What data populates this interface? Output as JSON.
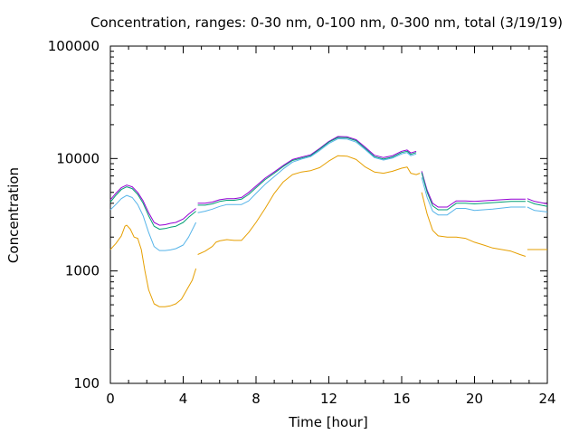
{
  "chart_data": {
    "type": "line",
    "title": "Concentration, ranges: 0-30 nm, 0-100 nm, 0-300 nm, total (3/19/19)",
    "xlabel": "Time [hour]",
    "ylabel": "Concentration",
    "xlim": [
      0,
      24
    ],
    "ylim": [
      100,
      100000
    ],
    "yscale": "log",
    "grid": false,
    "x_ticks": [
      0,
      4,
      8,
      12,
      16,
      20,
      24
    ],
    "x_tick_labels": [
      "0",
      "4",
      "8",
      "12",
      "16",
      "20",
      "24"
    ],
    "y_ticks": [
      100,
      1000,
      10000,
      100000
    ],
    "y_tick_labels": [
      "100",
      "1000",
      "10000",
      "100000"
    ],
    "colors": {
      "range_0_30": "#e69f00",
      "range_0_100": "#56b4e9",
      "range_0_300": "#009e73",
      "total": "#9400d3"
    },
    "series": [
      {
        "key": "total",
        "segments": [
          [
            [
              0,
              4300
            ],
            [
              0.3,
              4900
            ],
            [
              0.6,
              5500
            ],
            [
              0.9,
              5800
            ],
            [
              1.2,
              5600
            ],
            [
              1.5,
              5000
            ],
            [
              1.8,
              4200
            ],
            [
              2.1,
              3300
            ],
            [
              2.4,
              2700
            ],
            [
              2.7,
              2550
            ],
            [
              3.0,
              2580
            ],
            [
              3.3,
              2650
            ],
            [
              3.6,
              2700
            ],
            [
              4.0,
              2900
            ],
            [
              4.3,
              3200
            ],
            [
              4.7,
              3600
            ]
          ],
          [
            [
              4.8,
              4000
            ],
            [
              5.2,
              4000
            ],
            [
              5.6,
              4100
            ],
            [
              6.0,
              4300
            ],
            [
              6.4,
              4400
            ],
            [
              6.8,
              4400
            ],
            [
              7.2,
              4500
            ],
            [
              7.6,
              5000
            ],
            [
              8.0,
              5700
            ],
            [
              8.5,
              6700
            ],
            [
              9.0,
              7600
            ],
            [
              9.5,
              8700
            ],
            [
              10.0,
              9800
            ],
            [
              10.5,
              10300
            ],
            [
              11.0,
              10800
            ],
            [
              11.5,
              12300
            ],
            [
              12.0,
              14200
            ],
            [
              12.5,
              15700
            ],
            [
              13.0,
              15600
            ],
            [
              13.5,
              14700
            ],
            [
              14.0,
              12600
            ],
            [
              14.5,
              10700
            ],
            [
              15.0,
              10200
            ],
            [
              15.5,
              10600
            ],
            [
              16.0,
              11600
            ],
            [
              16.3,
              11900
            ],
            [
              16.5,
              11200
            ],
            [
              16.8,
              11600
            ]
          ],
          [
            [
              17.1,
              7700
            ],
            [
              17.4,
              5200
            ],
            [
              17.7,
              4000
            ],
            [
              18.0,
              3700
            ],
            [
              18.5,
              3700
            ],
            [
              19.0,
              4200
            ],
            [
              19.5,
              4200
            ],
            [
              20.0,
              4150
            ],
            [
              21.0,
              4250
            ],
            [
              22.0,
              4350
            ],
            [
              22.8,
              4350
            ]
          ],
          [
            [
              22.9,
              4400
            ],
            [
              23.3,
              4150
            ],
            [
              24.0,
              3950
            ]
          ]
        ]
      },
      {
        "key": "range_0_300",
        "segments": [
          [
            [
              0,
              4100
            ],
            [
              0.3,
              4700
            ],
            [
              0.6,
              5300
            ],
            [
              0.9,
              5600
            ],
            [
              1.2,
              5400
            ],
            [
              1.5,
              4800
            ],
            [
              1.8,
              4000
            ],
            [
              2.1,
              3100
            ],
            [
              2.4,
              2500
            ],
            [
              2.7,
              2350
            ],
            [
              3.0,
              2380
            ],
            [
              3.3,
              2450
            ],
            [
              3.6,
              2500
            ],
            [
              4.0,
              2700
            ],
            [
              4.3,
              3000
            ],
            [
              4.7,
              3400
            ]
          ],
          [
            [
              4.8,
              3850
            ],
            [
              5.2,
              3850
            ],
            [
              5.6,
              3950
            ],
            [
              6.0,
              4150
            ],
            [
              6.4,
              4250
            ],
            [
              6.8,
              4250
            ],
            [
              7.2,
              4350
            ],
            [
              7.6,
              4800
            ],
            [
              8.0,
              5500
            ],
            [
              8.5,
              6500
            ],
            [
              9.0,
              7400
            ],
            [
              9.5,
              8500
            ],
            [
              10.0,
              9600
            ],
            [
              10.5,
              10100
            ],
            [
              11.0,
              10600
            ],
            [
              11.5,
              12100
            ],
            [
              12.0,
              14000
            ],
            [
              12.5,
              15400
            ],
            [
              13.0,
              15300
            ],
            [
              13.5,
              14400
            ],
            [
              14.0,
              12300
            ],
            [
              14.5,
              10400
            ],
            [
              15.0,
              9900
            ],
            [
              15.5,
              10300
            ],
            [
              16.0,
              11300
            ],
            [
              16.3,
              11600
            ],
            [
              16.5,
              10900
            ],
            [
              16.8,
              11300
            ]
          ],
          [
            [
              17.1,
              7500
            ],
            [
              17.4,
              5000
            ],
            [
              17.7,
              3800
            ],
            [
              18.0,
              3500
            ],
            [
              18.5,
              3500
            ],
            [
              19.0,
              4000
            ],
            [
              19.5,
              4000
            ],
            [
              20.0,
              3950
            ],
            [
              21.0,
              4050
            ],
            [
              22.0,
              4150
            ],
            [
              22.8,
              4150
            ]
          ],
          [
            [
              22.9,
              4200
            ],
            [
              23.3,
              3950
            ],
            [
              24.0,
              3750
            ]
          ]
        ]
      },
      {
        "key": "range_0_100",
        "segments": [
          [
            [
              0,
              3500
            ],
            [
              0.3,
              3900
            ],
            [
              0.6,
              4400
            ],
            [
              0.9,
              4700
            ],
            [
              1.2,
              4500
            ],
            [
              1.5,
              3900
            ],
            [
              1.8,
              3100
            ],
            [
              2.1,
              2200
            ],
            [
              2.4,
              1650
            ],
            [
              2.7,
              1520
            ],
            [
              3.0,
              1520
            ],
            [
              3.3,
              1540
            ],
            [
              3.6,
              1580
            ],
            [
              4.0,
              1700
            ],
            [
              4.3,
              2000
            ],
            [
              4.7,
              2700
            ]
          ],
          [
            [
              4.8,
              3300
            ],
            [
              5.2,
              3400
            ],
            [
              5.6,
              3550
            ],
            [
              6.0,
              3750
            ],
            [
              6.4,
              3900
            ],
            [
              6.8,
              3900
            ],
            [
              7.2,
              3900
            ],
            [
              7.6,
              4200
            ],
            [
              8.0,
              4900
            ],
            [
              8.5,
              5900
            ],
            [
              9.0,
              6900
            ],
            [
              9.5,
              8100
            ],
            [
              10.0,
              9300
            ],
            [
              10.5,
              9900
            ],
            [
              11.0,
              10400
            ],
            [
              11.5,
              11800
            ],
            [
              12.0,
              13600
            ],
            [
              12.5,
              15000
            ],
            [
              13.0,
              14900
            ],
            [
              13.5,
              14000
            ],
            [
              14.0,
              12000
            ],
            [
              14.5,
              10200
            ],
            [
              15.0,
              9700
            ],
            [
              15.5,
              10100
            ],
            [
              16.0,
              11000
            ],
            [
              16.3,
              11300
            ],
            [
              16.5,
              10600
            ],
            [
              16.8,
              11000
            ]
          ],
          [
            [
              17.1,
              6800
            ],
            [
              17.4,
              4500
            ],
            [
              17.7,
              3400
            ],
            [
              18.0,
              3150
            ],
            [
              18.5,
              3150
            ],
            [
              19.0,
              3600
            ],
            [
              19.5,
              3600
            ],
            [
              20.0,
              3450
            ],
            [
              21.0,
              3550
            ],
            [
              22.0,
              3700
            ],
            [
              22.8,
              3700
            ]
          ],
          [
            [
              22.9,
              3700
            ],
            [
              23.3,
              3450
            ],
            [
              24.0,
              3350
            ]
          ]
        ]
      },
      {
        "key": "range_0_30",
        "segments": [
          [
            [
              0,
              1550
            ],
            [
              0.3,
              1750
            ],
            [
              0.6,
              2050
            ],
            [
              0.8,
              2500
            ],
            [
              0.9,
              2550
            ],
            [
              1.1,
              2350
            ],
            [
              1.3,
              2000
            ],
            [
              1.5,
              1950
            ],
            [
              1.7,
              1550
            ],
            [
              1.9,
              1000
            ],
            [
              2.1,
              680
            ],
            [
              2.4,
              510
            ],
            [
              2.7,
              480
            ],
            [
              3.0,
              480
            ],
            [
              3.3,
              490
            ],
            [
              3.6,
              510
            ],
            [
              3.9,
              560
            ],
            [
              4.2,
              680
            ],
            [
              4.5,
              830
            ],
            [
              4.7,
              1050
            ]
          ],
          [
            [
              4.8,
              1400
            ],
            [
              5.2,
              1500
            ],
            [
              5.6,
              1650
            ],
            [
              5.8,
              1800
            ],
            [
              6.0,
              1850
            ],
            [
              6.4,
              1900
            ],
            [
              6.8,
              1870
            ],
            [
              7.2,
              1870
            ],
            [
              7.6,
              2200
            ],
            [
              8.0,
              2700
            ],
            [
              8.5,
              3600
            ],
            [
              9.0,
              4900
            ],
            [
              9.5,
              6200
            ],
            [
              10.0,
              7200
            ],
            [
              10.5,
              7600
            ],
            [
              11.0,
              7800
            ],
            [
              11.5,
              8300
            ],
            [
              12.0,
              9500
            ],
            [
              12.5,
              10600
            ],
            [
              13.0,
              10500
            ],
            [
              13.5,
              9800
            ],
            [
              14.0,
              8400
            ],
            [
              14.5,
              7600
            ],
            [
              15.0,
              7400
            ],
            [
              15.5,
              7700
            ],
            [
              16.0,
              8200
            ],
            [
              16.3,
              8400
            ],
            [
              16.5,
              7400
            ],
            [
              16.8,
              7200
            ],
            [
              17.0,
              7400
            ]
          ],
          [
            [
              17.1,
              5000
            ],
            [
              17.4,
              3200
            ],
            [
              17.7,
              2300
            ],
            [
              18.0,
              2050
            ],
            [
              18.5,
              2000
            ],
            [
              19.0,
              2000
            ],
            [
              19.5,
              1950
            ],
            [
              20.0,
              1800
            ],
            [
              20.5,
              1700
            ],
            [
              21.0,
              1600
            ],
            [
              21.5,
              1550
            ],
            [
              22.0,
              1500
            ],
            [
              22.5,
              1400
            ],
            [
              22.8,
              1350
            ]
          ],
          [
            [
              22.9,
              1550
            ],
            [
              23.3,
              1550
            ],
            [
              24.0,
              1550
            ]
          ]
        ]
      }
    ]
  }
}
